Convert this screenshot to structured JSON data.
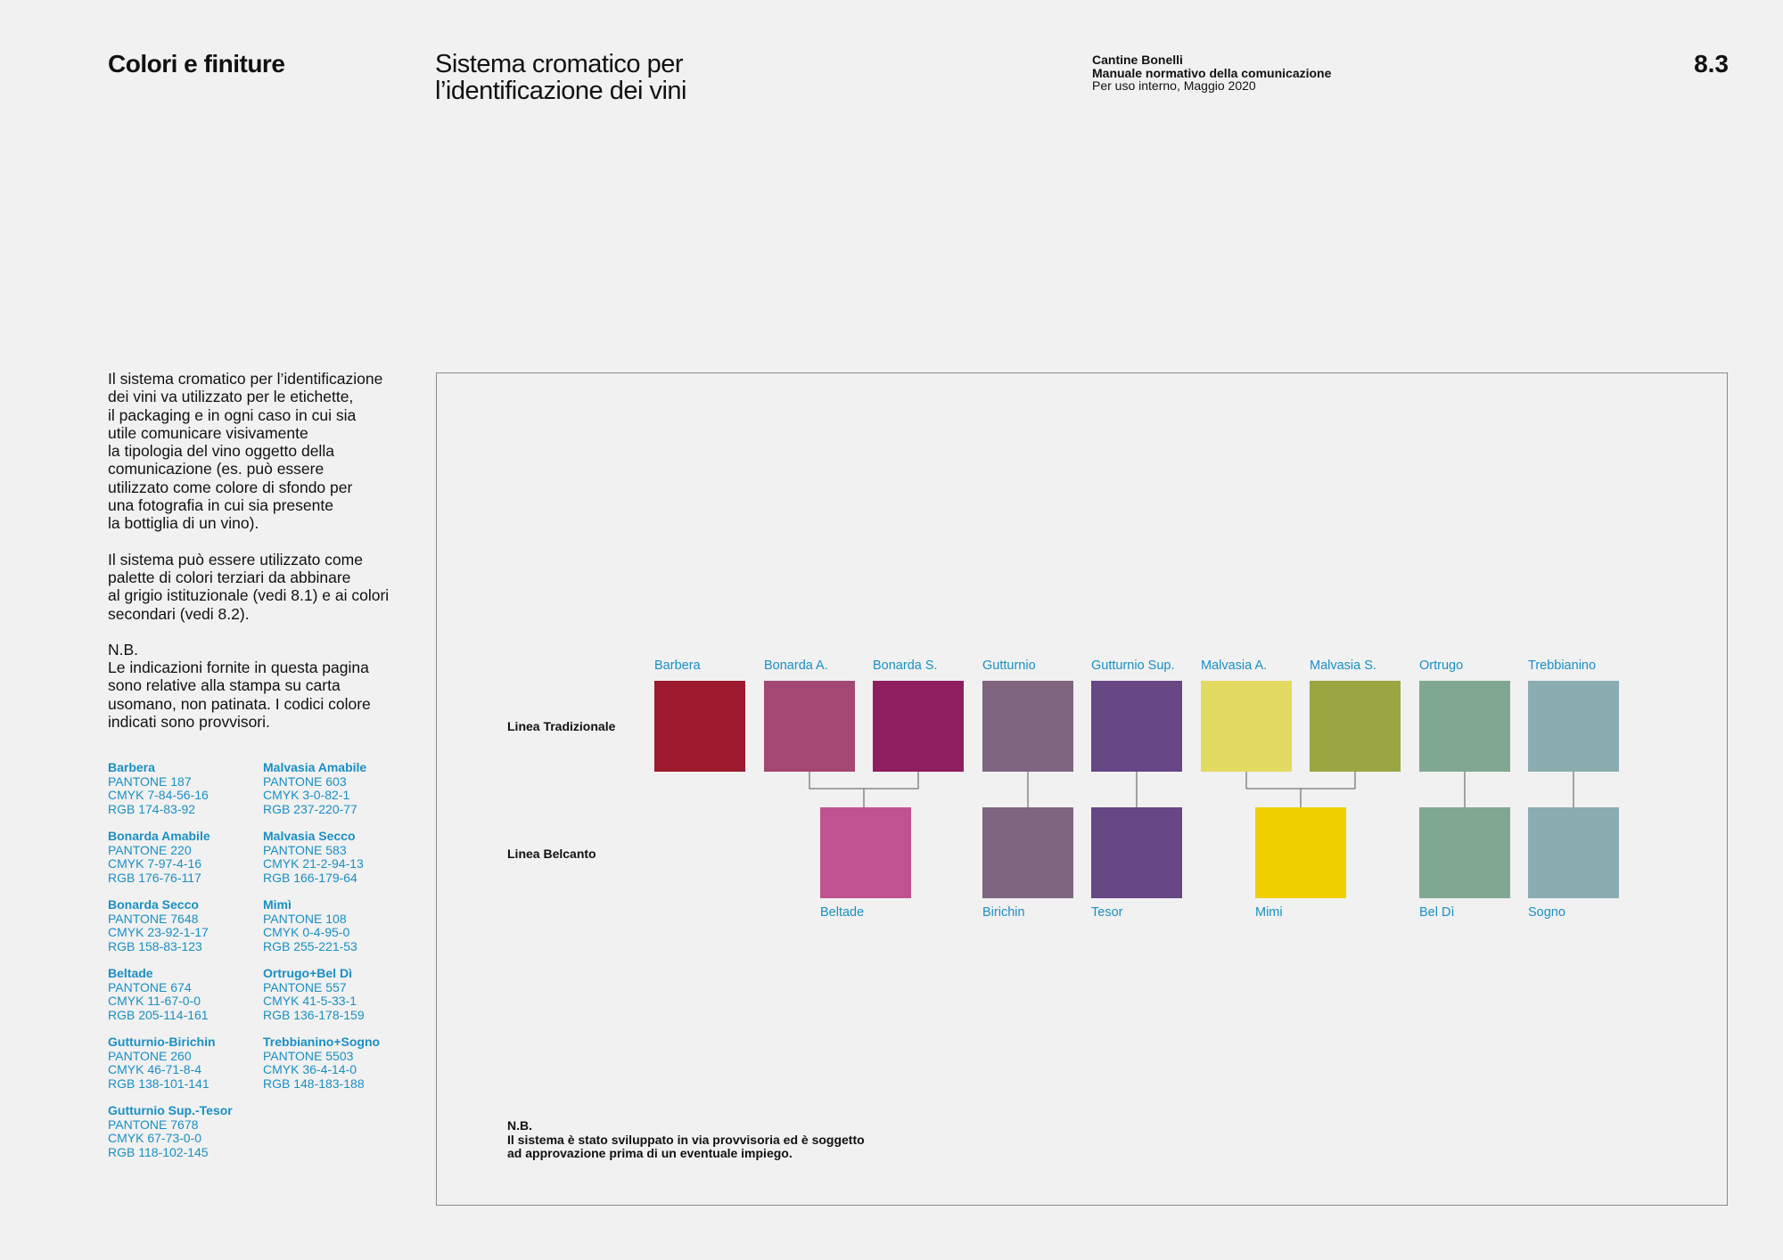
{
  "header": {
    "section_title": "Colori e finiture",
    "subtitle": "Sistema cromatico per l’identificazione dei vini",
    "company": "Cantine Bonelli",
    "manual": "Manuale normativo della comunicazione",
    "note": "Per uso interno, Maggio 2020",
    "page_number": "8.3"
  },
  "intro": {
    "p1": "Il sistema cromatico per l’identificazione\ndei vini va utilizzato per le etichette,\nil packaging e in ogni caso in cui sia\nutile comunicare visivamente\nla tipologia del vino oggetto della\ncomunicazione (es. può essere\nutilizzato come colore di sfondo per\nuna fotografia in cui sia presente\nla bottiglia di un vino).",
    "p2": "Il sistema può essere utilizzato come\npalette di colori terziari da abbinare\nal grigio istituzionale (vedi 8.1) e ai colori\nsecondari (vedi 8.2).",
    "nb": "N.B.",
    "p3": "Le indicazioni fornite in questa pagina\nsono relative alla stampa su carta\nusomano, non patinata. I codici colore\nindicati sono provvisori."
  },
  "color_specs": [
    {
      "name": "Barbera",
      "pantone": "PANTONE 187",
      "cmyk": "CMYK 7-84-56-16",
      "rgb": "RGB 174-83-92"
    },
    {
      "name": "Bonarda Amabile",
      "pantone": "PANTONE 220",
      "cmyk": "CMYK 7-97-4-16",
      "rgb": "RGB 176-76-117"
    },
    {
      "name": "Bonarda Secco",
      "pantone": "PANTONE 7648",
      "cmyk": "CMYK 23-92-1-17",
      "rgb": "RGB 158-83-123"
    },
    {
      "name": "Beltade",
      "pantone": "PANTONE 674",
      "cmyk": "CMYK 11-67-0-0",
      "rgb": "RGB 205-114-161"
    },
    {
      "name": "Gutturnio-Birichin",
      "pantone": "PANTONE 260",
      "cmyk": "CMYK 46-71-8-4",
      "rgb": "RGB 138-101-141"
    },
    {
      "name": "Gutturnio Sup.-Tesor",
      "pantone": "PANTONE 7678",
      "cmyk": "CMYK 67-73-0-0",
      "rgb": "RGB 118-102-145"
    },
    {
      "name": "Malvasia Amabile",
      "pantone": "PANTONE 603",
      "cmyk": "CMYK 3-0-82-1",
      "rgb": "RGB 237-220-77"
    },
    {
      "name": "Malvasia Secco",
      "pantone": "PANTONE 583",
      "cmyk": "CMYK 21-2-94-13",
      "rgb": "RGB 166-179-64"
    },
    {
      "name": "Mimì",
      "pantone": "PANTONE 108",
      "cmyk": "CMYK 0-4-95-0",
      "rgb": "RGB 255-221-53"
    },
    {
      "name": "Ortrugo+Bel Dì",
      "pantone": "PANTONE 557",
      "cmyk": "CMYK 41-5-33-1",
      "rgb": "RGB 136-178-159"
    },
    {
      "name": "Trebbianino+Sogno",
      "pantone": "PANTONE 5503",
      "cmyk": "CMYK 36-4-14-0",
      "rgb": "RGB 148-183-188"
    }
  ],
  "diagram": {
    "row_traditional": "Linea Tradizionale",
    "row_belcanto": "Linea Belcanto",
    "traditional": [
      {
        "label": "Barbera",
        "color": "#9c192e"
      },
      {
        "label": "Bonarda A.",
        "color": "#a34872"
      },
      {
        "label": "Bonarda S.",
        "color": "#8e1e60"
      },
      {
        "label": "Gutturnio",
        "color": "#7f6580"
      },
      {
        "label": "Gutturnio Sup.",
        "color": "#674784"
      },
      {
        "label": "Malvasia A.",
        "color": "#e3da61"
      },
      {
        "label": "Malvasia S.",
        "color": "#9aa642"
      },
      {
        "label": "Ortrugo",
        "color": "#80a891"
      },
      {
        "label": "Trebbianino",
        "color": "#8aadb1"
      }
    ],
    "belcanto": [
      {
        "label": "Beltade",
        "color": "#bf538f"
      },
      {
        "label": "Birichin",
        "color": "#7f6580"
      },
      {
        "label": "Tesor",
        "color": "#674784"
      },
      {
        "label": "Mimi",
        "color": "#f0cf00"
      },
      {
        "label": "Bel Dì",
        "color": "#80a891"
      },
      {
        "label": "Sogno",
        "color": "#8aadb1"
      }
    ],
    "footnote_title": "N.B.",
    "footnote_line1": "Il sistema è stato sviluppato in via provvisoria ed è soggetto",
    "footnote_line2": "ad approvazione prima di un eventuale impiego."
  }
}
